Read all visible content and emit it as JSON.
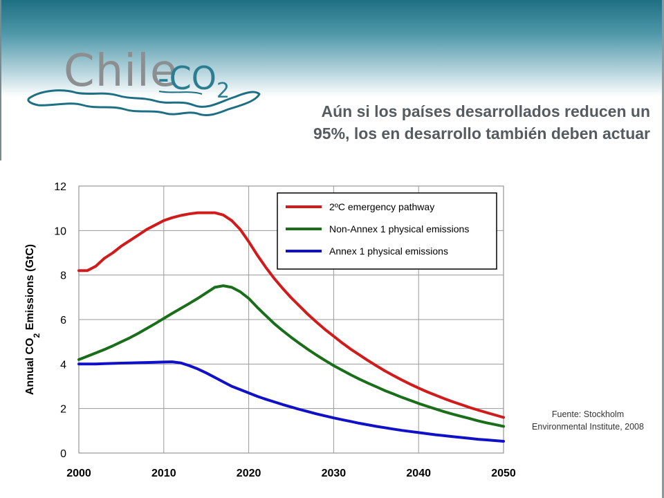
{
  "logo": {
    "name_main": "Chile",
    "name_dash": "-",
    "name_co": "CO",
    "name_sub": "2"
  },
  "headline": {
    "line1": "Aún si los países desarrollados reducen un",
    "line2": "95%, los en desarrollo también deben actuar"
  },
  "source": {
    "line1": "Fuente:  Stockholm",
    "line2": "Environmental Institute, 2008"
  },
  "colors": {
    "header": "#1e6f82",
    "emergency": "#d11a1a",
    "non_annex": "#1a6e1a",
    "annex": "#1010c8"
  },
  "chart_data": {
    "type": "line",
    "title": "",
    "xlabel": "",
    "ylabel_parts": [
      "Annual CO",
      "2",
      " Emissions (GtC)"
    ],
    "xlim": [
      2000,
      2050
    ],
    "ylim": [
      0,
      12
    ],
    "x_ticks": [
      2000,
      2010,
      2020,
      2030,
      2040,
      2050
    ],
    "y_ticks": [
      0,
      2,
      4,
      6,
      8,
      10,
      12
    ],
    "grid": true,
    "legend_position": "top-right",
    "x": [
      2000,
      2001,
      2002,
      2003,
      2004,
      2005,
      2006,
      2007,
      2008,
      2009,
      2010,
      2011,
      2012,
      2013,
      2014,
      2015,
      2016,
      2017,
      2018,
      2019,
      2020,
      2021,
      2022,
      2023,
      2024,
      2025,
      2026,
      2027,
      2028,
      2029,
      2030,
      2031,
      2032,
      2033,
      2034,
      2035,
      2036,
      2037,
      2038,
      2039,
      2040,
      2041,
      2042,
      2043,
      2044,
      2045,
      2046,
      2047,
      2048,
      2049,
      2050
    ],
    "series": [
      {
        "name": "2ºC emergency pathway",
        "color": "#d11a1a",
        "values": [
          8.2,
          8.2,
          8.4,
          8.75,
          9.0,
          9.3,
          9.55,
          9.8,
          10.05,
          10.25,
          10.45,
          10.58,
          10.68,
          10.75,
          10.8,
          10.8,
          10.8,
          10.7,
          10.45,
          10.05,
          9.5,
          8.9,
          8.35,
          7.85,
          7.4,
          6.98,
          6.6,
          6.22,
          5.88,
          5.55,
          5.25,
          4.95,
          4.67,
          4.42,
          4.17,
          3.93,
          3.7,
          3.49,
          3.29,
          3.1,
          2.92,
          2.75,
          2.6,
          2.45,
          2.31,
          2.18,
          2.05,
          1.93,
          1.82,
          1.71,
          1.6
        ]
      },
      {
        "name": "Non-Annex 1 physical emissions",
        "color": "#1a6e1a",
        "values": [
          4.2,
          4.35,
          4.5,
          4.65,
          4.82,
          5.0,
          5.18,
          5.38,
          5.6,
          5.82,
          6.05,
          6.28,
          6.5,
          6.72,
          6.95,
          7.2,
          7.45,
          7.52,
          7.45,
          7.25,
          6.95,
          6.55,
          6.18,
          5.82,
          5.5,
          5.2,
          4.92,
          4.65,
          4.4,
          4.16,
          3.93,
          3.72,
          3.52,
          3.33,
          3.15,
          2.98,
          2.81,
          2.66,
          2.51,
          2.37,
          2.23,
          2.1,
          1.98,
          1.86,
          1.75,
          1.65,
          1.55,
          1.45,
          1.36,
          1.28,
          1.2
        ]
      },
      {
        "name": "Annex 1 physical emissions",
        "color": "#1010c8",
        "values": [
          4.0,
          4.0,
          4.0,
          4.02,
          4.03,
          4.04,
          4.05,
          4.06,
          4.07,
          4.08,
          4.09,
          4.1,
          4.05,
          3.93,
          3.78,
          3.6,
          3.4,
          3.2,
          3.0,
          2.85,
          2.7,
          2.55,
          2.42,
          2.3,
          2.18,
          2.07,
          1.96,
          1.86,
          1.76,
          1.67,
          1.58,
          1.5,
          1.42,
          1.34,
          1.27,
          1.2,
          1.14,
          1.08,
          1.02,
          0.97,
          0.92,
          0.87,
          0.82,
          0.78,
          0.74,
          0.7,
          0.66,
          0.62,
          0.59,
          0.56,
          0.53
        ]
      }
    ]
  }
}
